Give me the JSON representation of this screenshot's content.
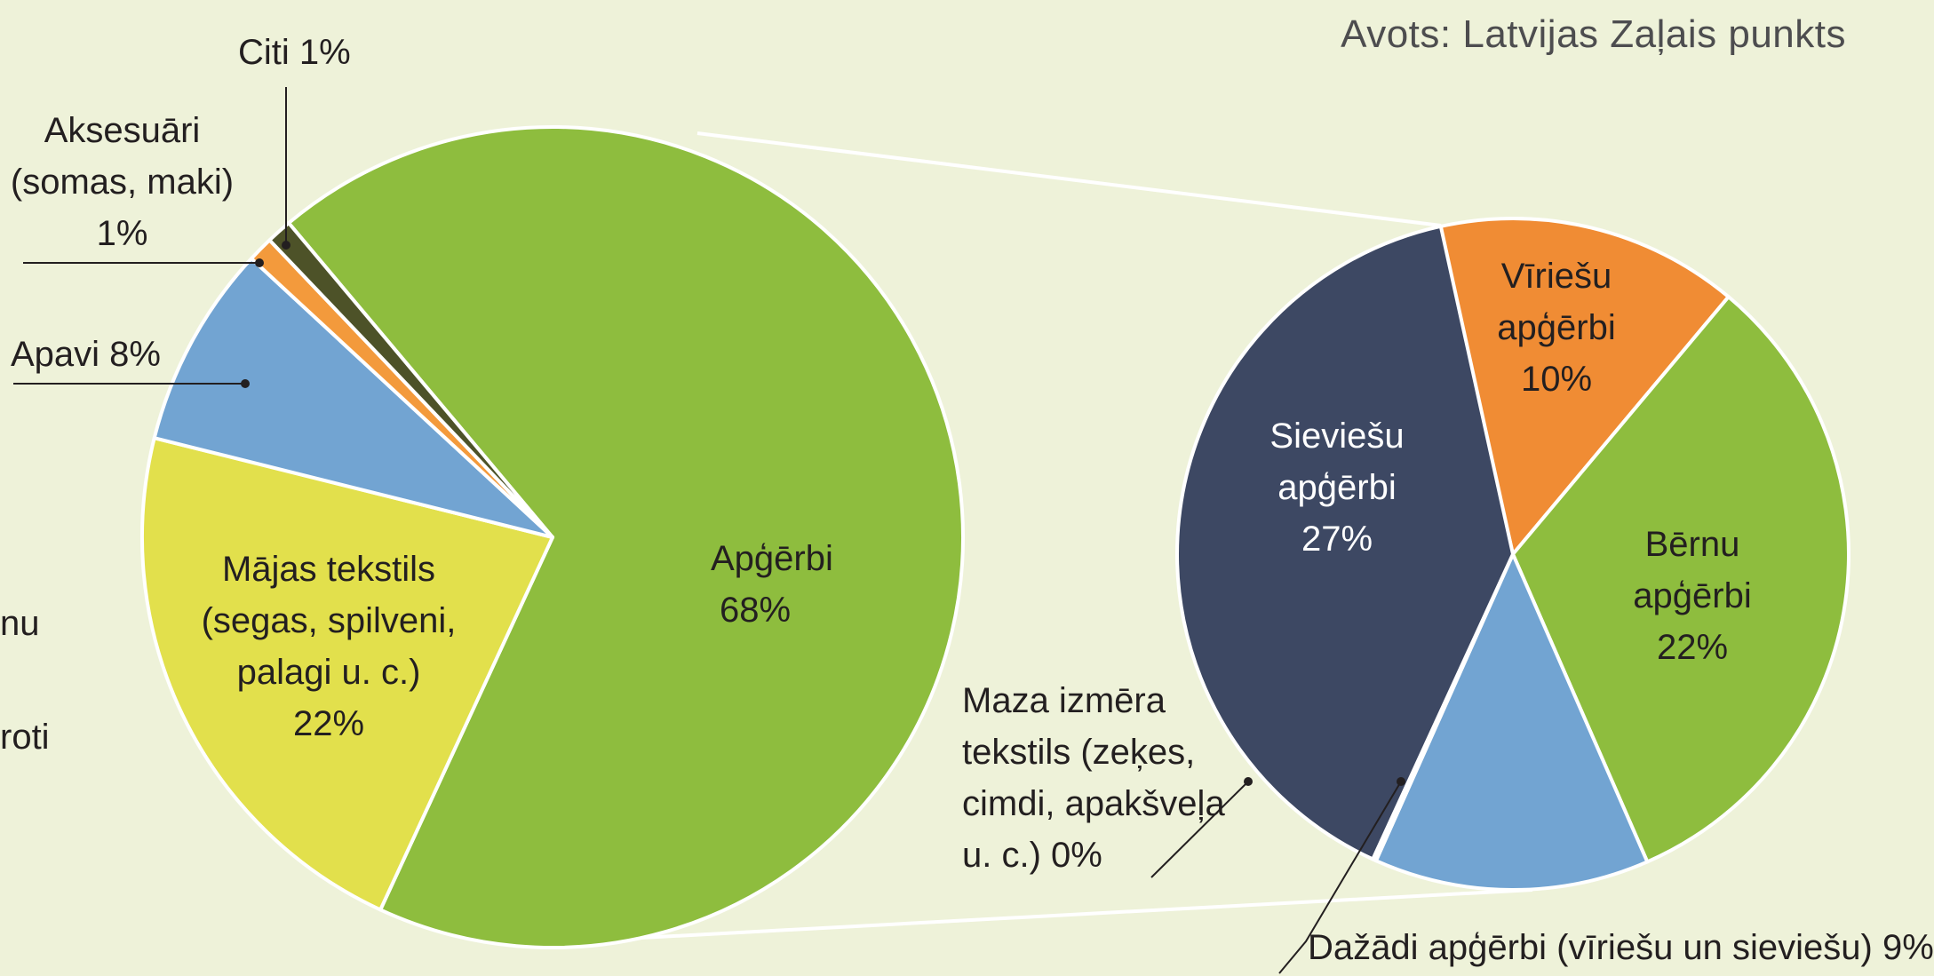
{
  "source": "Avots: Latvijas Zaļais punkts",
  "cut_text": [
    "nu",
    "roti"
  ],
  "chart_data": [
    {
      "type": "pie",
      "slices": [
        {
          "label": "Apģērbi",
          "value": 68,
          "text": "Apģērbi\n68%",
          "color": "#8ebd3e"
        },
        {
          "label": "Mājas tekstils (segas, spilveni, palagi u. c.)",
          "value": 22,
          "text": "Mājas tekstils\n(segas, spilveni,\npalagi u. c.)\n22%",
          "color": "#e2e04c"
        },
        {
          "label": "Apavi",
          "value": 8,
          "text": "Apavi 8%",
          "color": "#72a4d2"
        },
        {
          "label": "Aksesuāri (somas, maki)",
          "value": 1,
          "text": "Aksesuāri\n(somas, maki)\n1%",
          "color": "#f39a3c"
        },
        {
          "label": "Citi",
          "value": 1,
          "text": "Citi 1%",
          "color": "#4d5228"
        }
      ]
    },
    {
      "type": "pie",
      "breakdown_of": "Apģērbi",
      "slices": [
        {
          "label": "Vīriešu apģērbi",
          "value": 10,
          "text": "Vīriešu\napģērbi\n10%",
          "color": "#f08c34"
        },
        {
          "label": "Bērnu apģērbi",
          "value": 22,
          "text": "Bērnu\napģērbi\n22%",
          "color": "#8ebd3e"
        },
        {
          "label": "Dažādi apģērbi (vīriešu un sieviešu)",
          "value": 9,
          "text": "Dažādi apģērbi (vīriešu un sieviešu) 9%",
          "color": "#72a4d2"
        },
        {
          "label": "Maza izmēra tekstils (zeķes, cimdi, apakšveļa u. c.)",
          "value": 0,
          "text": "Maza izmēra\ntekstils (zeķes,\ncimdi, apakšveļa\nu. c.) 0%",
          "color": "#e6427d"
        },
        {
          "label": "Sieviešu apģērbi",
          "value": 27,
          "text": "Sieviešu\napģērbi\n27%",
          "color": "#3d4863"
        }
      ]
    }
  ]
}
